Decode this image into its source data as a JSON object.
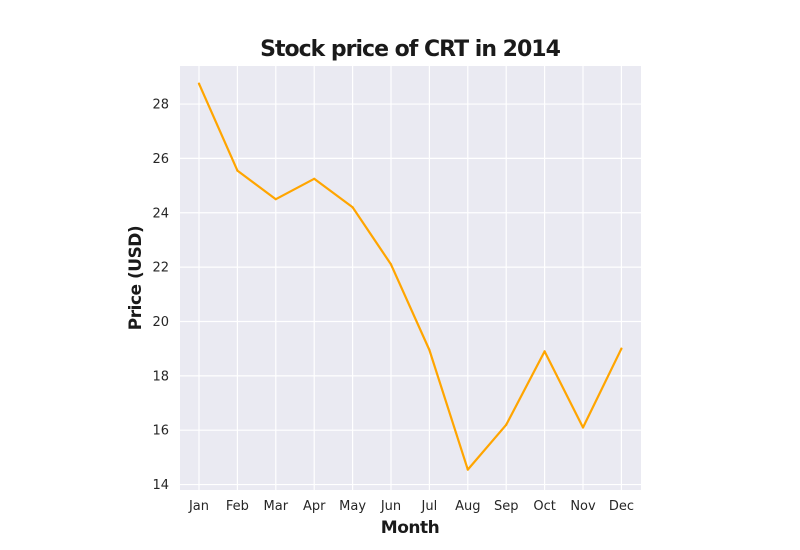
{
  "chart_data": {
    "type": "line",
    "title": "Stock price of CRT in 2014",
    "xlabel": "Month",
    "ylabel": "Price (USD)",
    "categories": [
      "Jan",
      "Feb",
      "Mar",
      "Apr",
      "May",
      "Jun",
      "Jul",
      "Aug",
      "Sep",
      "Oct",
      "Nov",
      "Dec"
    ],
    "series": [
      {
        "values": [
          28.75,
          25.55,
          24.5,
          25.25,
          24.2,
          22.1,
          18.95,
          14.55,
          16.2,
          18.9,
          16.1,
          19.0
        ],
        "color": "#ffa500"
      }
    ],
    "ylim": [
      13.8,
      29.4
    ],
    "yticks": [
      14,
      16,
      18,
      20,
      22,
      24,
      26,
      28
    ],
    "grid": true,
    "legend": "none",
    "background_color": "#eaeaf2",
    "grid_color": "#ffffff"
  }
}
